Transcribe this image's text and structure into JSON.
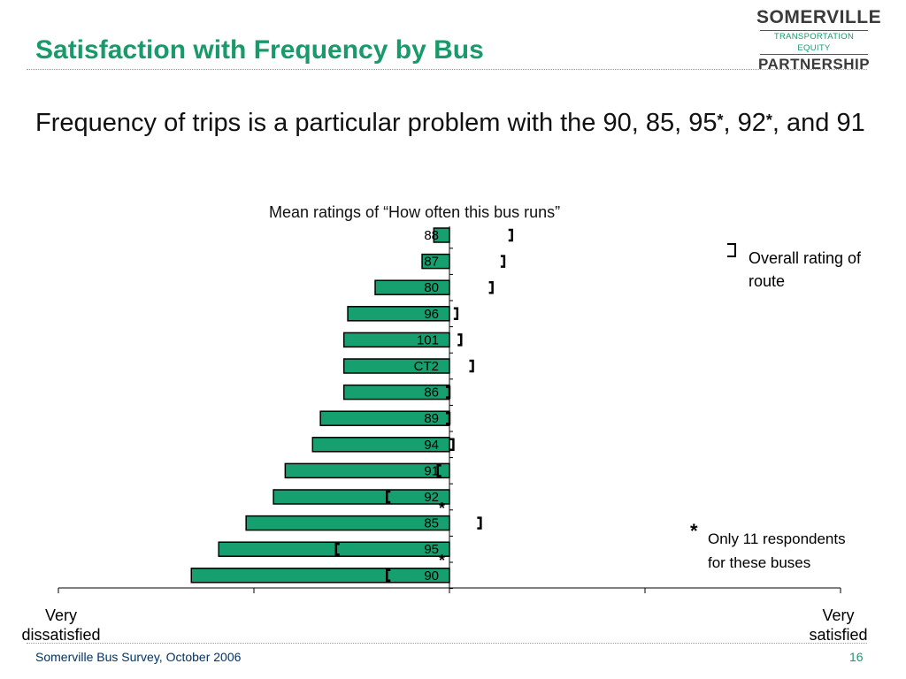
{
  "slide": {
    "title": "Satisfaction with Frequency by Bus",
    "subtitle_part1": "Frequency of trips is a particular problem with the 90, 85, 95",
    "subtitle_star1": "*",
    "subtitle_part2": ", 92",
    "subtitle_star2": "*",
    "subtitle_part3": ", and 91",
    "footer": "Somerville Bus Survey, October 2006",
    "page_number": "16",
    "title_color": "#1a9a6b"
  },
  "logo": {
    "line1": "SOMERVILLE",
    "line2": "TRANSPORTATION EQUITY",
    "line3": "PARTNERSHIP"
  },
  "legend": {
    "overall_label": "Overall rating of route",
    "star_symbol": "*",
    "star_label_line1": "Only 11 respondents",
    "star_label_line2": "for these buses"
  },
  "chart_data": {
    "type": "bar",
    "orientation": "horizontal",
    "title": "Mean ratings of “How often this bus runs”",
    "xlabel": "",
    "ylabel": "",
    "x_left_label": "Very dissatisfied",
    "x_right_label": "Very satisfied",
    "xlim": [
      -1,
      1
    ],
    "bar_color": "#17a06f",
    "categories": [
      "88",
      "87",
      "80",
      "96",
      "101",
      "CT2",
      "86",
      "89",
      "94",
      "91",
      "92",
      "85",
      "95",
      "90"
    ],
    "series": [
      {
        "values": [
          -0.04,
          -0.07,
          -0.19,
          -0.26,
          -0.27,
          -0.27,
          -0.27,
          -0.33,
          -0.35,
          -0.42,
          -0.45,
          -0.52,
          -0.59,
          -0.66
        ]
      }
    ],
    "overall_rating": [
      0.16,
      0.14,
      0.11,
      0.02,
      0.03,
      0.06,
      0.0,
      0.0,
      0.01,
      -0.03,
      -0.16,
      0.08,
      -0.29,
      -0.16
    ],
    "small_sample": [
      "92",
      "95"
    ]
  }
}
